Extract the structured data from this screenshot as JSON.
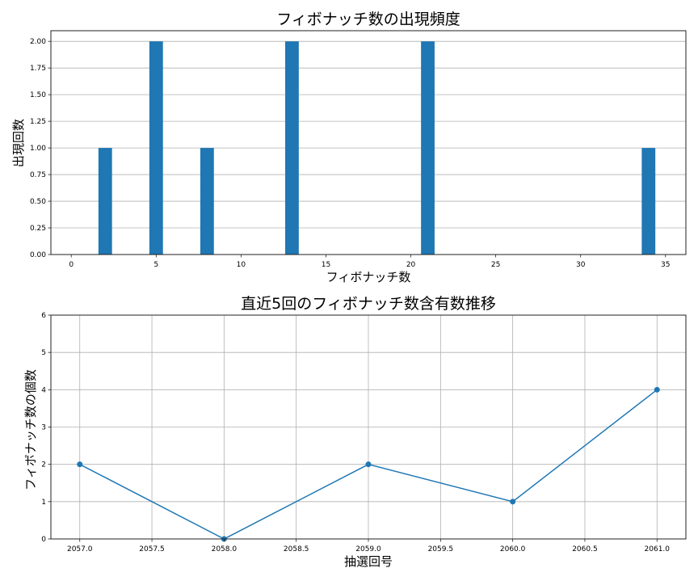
{
  "chart_data": [
    {
      "type": "bar",
      "title": "フィボナッチ数の出現頻度",
      "xlabel": "フィボナッチ数",
      "ylabel": "出現回数",
      "categories": [
        2,
        5,
        8,
        13,
        21,
        34
      ],
      "values": [
        1,
        2,
        1,
        2,
        2,
        1
      ],
      "bar_width": 0.8,
      "xlim": [
        -1.2,
        36.2
      ],
      "ylim": [
        0,
        2.1
      ],
      "xticks": [
        0,
        5,
        10,
        15,
        20,
        25,
        30,
        35
      ],
      "xtick_labels": [
        "0",
        "5",
        "10",
        "15",
        "20",
        "25",
        "30",
        "35"
      ],
      "yticks": [
        0,
        0.25,
        0.5,
        0.75,
        1.0,
        1.25,
        1.5,
        1.75,
        2.0
      ],
      "ytick_labels": [
        "0.00",
        "0.25",
        "0.50",
        "0.75",
        "1.00",
        "1.25",
        "1.50",
        "1.75",
        "2.00"
      ],
      "grid": "y",
      "color": "#1f77b4"
    },
    {
      "type": "line",
      "title": "直近5回のフィボナッチ数含有数推移",
      "xlabel": "抽選回号",
      "ylabel": "フィボナッチ数の個数",
      "x": [
        2057,
        2058,
        2059,
        2060,
        2061
      ],
      "values": [
        2,
        0,
        2,
        1,
        4
      ],
      "marker": "circle",
      "xlim": [
        2056.8,
        2061.2
      ],
      "ylim": [
        0,
        6
      ],
      "xticks": [
        2057.0,
        2057.5,
        2058.0,
        2058.5,
        2059.0,
        2059.5,
        2060.0,
        2060.5,
        2061.0
      ],
      "xtick_labels": [
        "2057.0",
        "2057.5",
        "2058.0",
        "2058.5",
        "2059.0",
        "2059.5",
        "2060.0",
        "2060.5",
        "2061.0"
      ],
      "yticks": [
        0,
        1,
        2,
        3,
        4,
        5,
        6
      ],
      "ytick_labels": [
        "0",
        "1",
        "2",
        "3",
        "4",
        "5",
        "6"
      ],
      "grid": "both",
      "color": "#1f77b4"
    }
  ]
}
